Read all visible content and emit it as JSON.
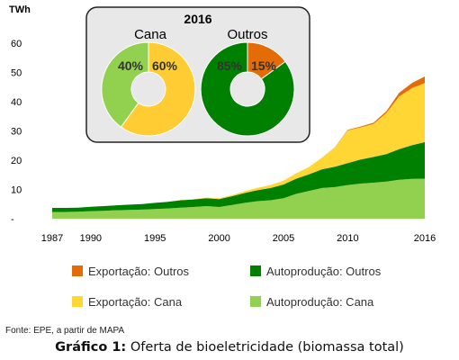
{
  "chart_data": {
    "type": "area",
    "stacked": true,
    "y_unit_label": "TWh",
    "ylim": [
      0,
      60
    ],
    "yticks": [
      "60",
      "50",
      "40",
      "30",
      "20",
      "10",
      "-"
    ],
    "xlim": [
      1987,
      2016
    ],
    "xticks": [
      1987,
      1990,
      1995,
      2000,
      2005,
      2010,
      2016
    ],
    "grid": false,
    "legend_position": "bottom",
    "x": [
      1987,
      1988,
      1989,
      1990,
      1991,
      1992,
      1993,
      1994,
      1995,
      1996,
      1997,
      1998,
      1999,
      2000,
      2001,
      2002,
      2003,
      2004,
      2005,
      2006,
      2007,
      2008,
      2009,
      2010,
      2011,
      2012,
      2013,
      2014,
      2015,
      2016
    ],
    "series": [
      {
        "name": "Autoprodução: Cana",
        "color": "#92d050",
        "values": [
          2.3,
          2.3,
          2.4,
          2.6,
          2.7,
          2.9,
          3.0,
          3.1,
          3.3,
          3.5,
          3.8,
          4.0,
          4.3,
          4.0,
          4.7,
          5.4,
          6.0,
          6.3,
          7.0,
          8.5,
          9.5,
          10.5,
          10.8,
          11.5,
          12.0,
          12.3,
          12.7,
          13.3,
          13.6,
          13.7
        ]
      },
      {
        "name": "Autoprodução: Outros",
        "color": "#008000",
        "values": [
          1.4,
          1.4,
          1.4,
          1.5,
          1.6,
          1.7,
          1.8,
          1.9,
          2.1,
          2.3,
          2.5,
          2.6,
          2.7,
          2.7,
          3.0,
          3.4,
          3.8,
          4.2,
          4.7,
          5.2,
          5.7,
          6.4,
          7.0,
          7.5,
          8.2,
          8.8,
          9.4,
          10.5,
          11.5,
          12.5
        ]
      },
      {
        "name": "Exportação: Cana",
        "color": "#ffd633",
        "values": [
          0,
          0,
          0,
          0,
          0,
          0,
          0,
          0,
          0,
          0,
          0.1,
          0.1,
          0.2,
          0.3,
          0.4,
          0.6,
          0.8,
          1.0,
          1.3,
          1.8,
          2.5,
          4.0,
          6.5,
          11.2,
          11.0,
          11.3,
          14.0,
          18.0,
          19.5,
          20.2
        ]
      },
      {
        "name": "Exportação: Outros",
        "color": "#e36c09",
        "values": [
          0,
          0,
          0,
          0,
          0,
          0,
          0,
          0,
          0,
          0,
          0,
          0,
          0,
          0,
          0,
          0,
          0,
          0,
          0,
          0,
          0,
          0,
          0.1,
          0.2,
          0.3,
          0.4,
          0.6,
          1.2,
          1.8,
          2.2
        ]
      }
    ],
    "inset": {
      "year": "2016",
      "donuts": [
        {
          "label": "Cana",
          "slices": [
            {
              "name": "Exportação",
              "value": 60,
              "label": "60%",
              "color": "#ffcc33"
            },
            {
              "name": "Autoprodução",
              "value": 40,
              "label": "40%",
              "color": "#92d050"
            }
          ]
        },
        {
          "label": "Outros",
          "slices": [
            {
              "name": "Exportação",
              "value": 15,
              "label": "15%",
              "color": "#e36c09"
            },
            {
              "name": "Autoprodução",
              "value": 85,
              "label": "85%",
              "color": "#008000"
            }
          ]
        }
      ]
    }
  },
  "source_text": "Fonte: EPE, a partir de MAPA",
  "caption_bold": "Gráfico 1:",
  "caption_rest": " Oferta de bioeletricidade (biomassa total)"
}
